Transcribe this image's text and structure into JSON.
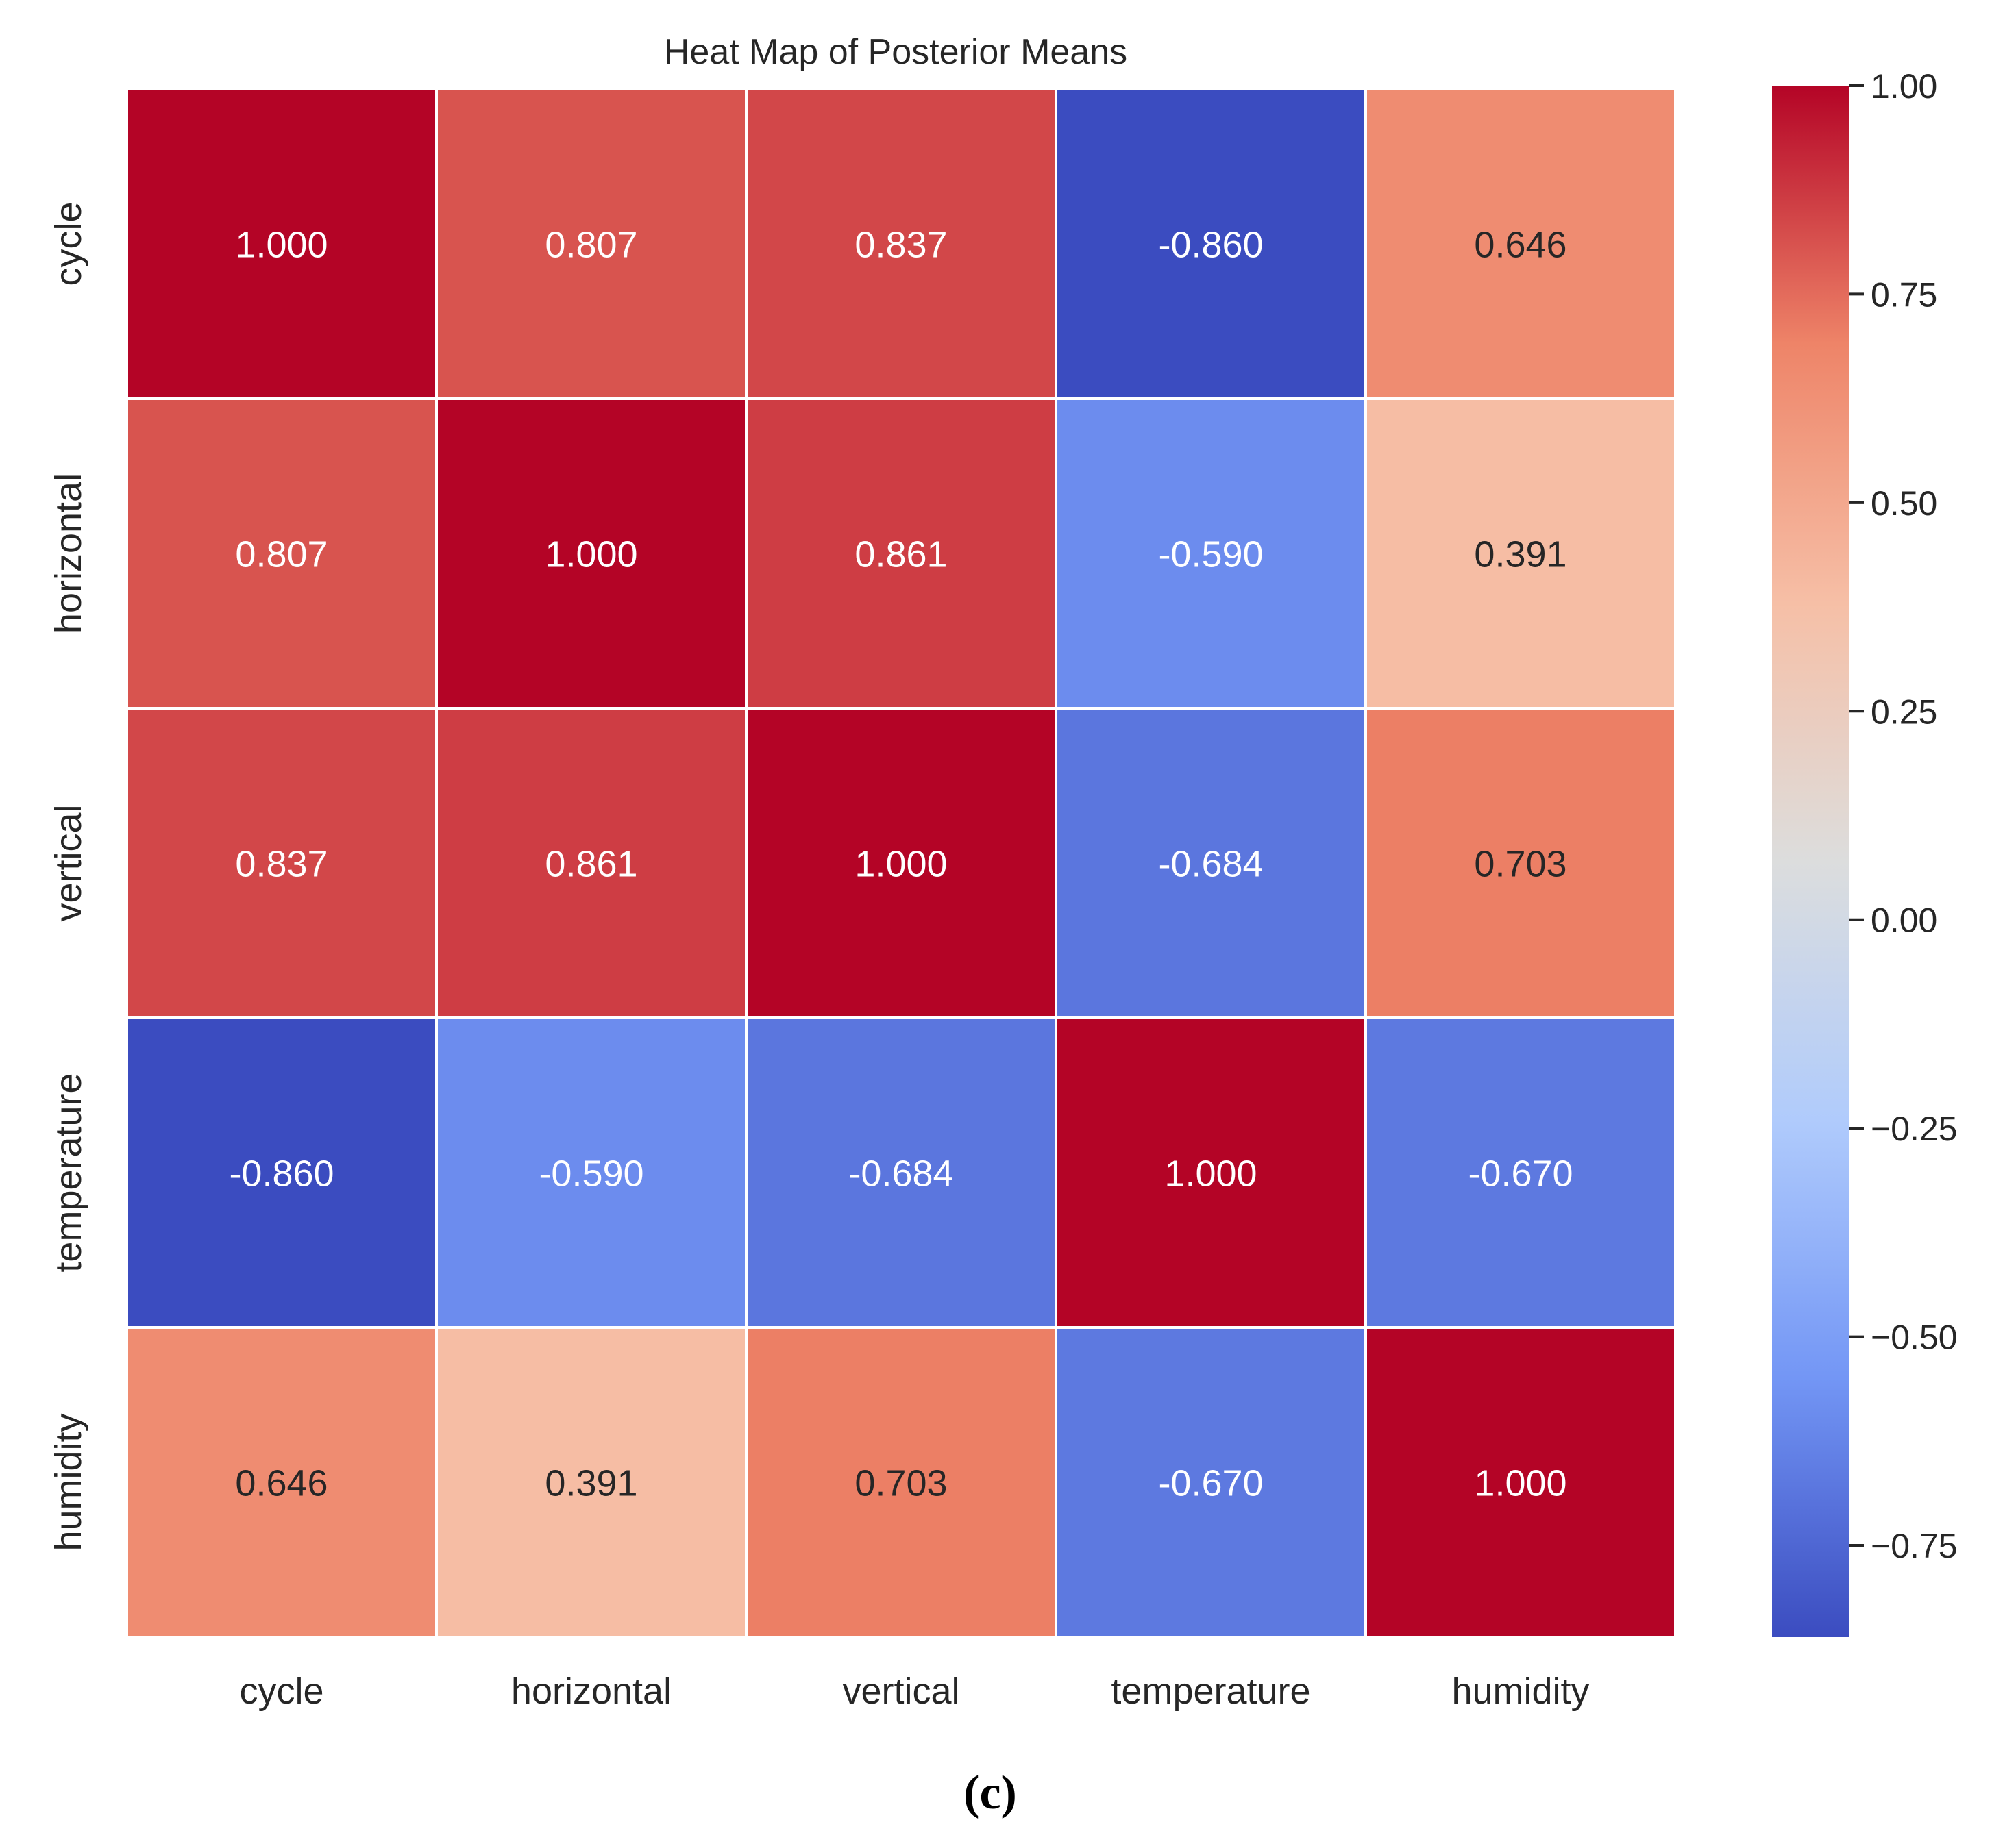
{
  "chart_data": {
    "type": "heatmap",
    "title": "Heat Map of Posterior Means",
    "x_labels": [
      "cycle",
      "horizontal",
      "vertical",
      "temperature",
      "humidity"
    ],
    "y_labels": [
      "cycle",
      "horizontal",
      "vertical",
      "temperature",
      "humidity"
    ],
    "values": [
      [
        1.0,
        0.807,
        0.837,
        -0.86,
        0.646
      ],
      [
        0.807,
        1.0,
        0.861,
        -0.59,
        0.391
      ],
      [
        0.837,
        0.861,
        1.0,
        -0.684,
        0.703
      ],
      [
        -0.86,
        -0.59,
        -0.684,
        1.0,
        -0.67
      ],
      [
        0.646,
        0.391,
        0.703,
        -0.67,
        1.0
      ]
    ],
    "cell_labels": [
      [
        "1.000",
        "0.807",
        "0.837",
        "-0.860",
        "0.646"
      ],
      [
        "0.807",
        "1.000",
        "0.861",
        "-0.590",
        "0.391"
      ],
      [
        "0.837",
        "0.861",
        "1.000",
        "-0.684",
        "0.703"
      ],
      [
        "-0.860",
        "-0.590",
        "-0.684",
        "1.000",
        "-0.670"
      ],
      [
        "0.646",
        "0.391",
        "0.703",
        "-0.670",
        "1.000"
      ]
    ],
    "colormap": "coolwarm",
    "colormap_stops": [
      "#3b4cc0",
      "#7396f5",
      "#b0cbfc",
      "#dcdddd",
      "#f6bfa6",
      "#ee8468",
      "#b40426"
    ],
    "vmin": -0.86,
    "vmax": 1.0,
    "colorbar_ticks": [
      1.0,
      0.75,
      0.5,
      0.25,
      0.0,
      -0.25,
      -0.5,
      -0.75
    ],
    "colorbar_tick_labels": [
      "1.00",
      "0.75",
      "0.50",
      "0.25",
      "0.00",
      "−0.25",
      "−0.50",
      "−0.75"
    ],
    "xlabel": "",
    "ylabel": ""
  },
  "caption": "(c)"
}
